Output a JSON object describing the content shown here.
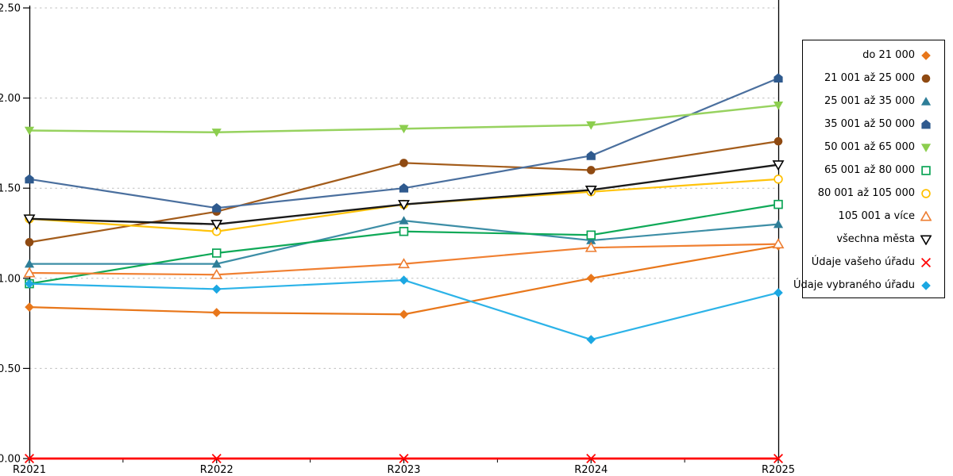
{
  "chart_data": {
    "type": "line",
    "title": "",
    "xlabel": "",
    "ylabel": "",
    "x_categories": [
      "R2021",
      "R2022",
      "R2023",
      "R2024",
      "R2025"
    ],
    "y_tick_labels": [
      "0.00",
      "0.50",
      "1.00",
      "1.50",
      "2.00",
      "2.50"
    ],
    "ylim": [
      0,
      2.5
    ],
    "grid": "horizontal-dashed",
    "gridline_color": "#BFBFBF",
    "axis_color": "#000000",
    "background_color": "#FFFFFF",
    "legend_position": "right",
    "highlighted_x": "R2025",
    "series": [
      {
        "name": "do 21 000",
        "marker": "diamond",
        "marker_style": "filled",
        "color": "#E8771B",
        "marker_color": "#E8771B",
        "line_width": 2.2,
        "values": [
          0.84,
          0.81,
          0.8,
          1.0,
          1.18
        ]
      },
      {
        "name": "21 001 až 25 000",
        "marker": "circle",
        "marker_style": "filled",
        "color": "#A35C1B",
        "marker_color": "#8F4A12",
        "line_width": 2.2,
        "values": [
          1.2,
          1.37,
          1.64,
          1.6,
          1.76
        ]
      },
      {
        "name": "25 001 až 35 000",
        "marker": "triangle-up",
        "marker_style": "filled",
        "color": "#3D8EA6",
        "marker_color": "#2E7E98",
        "line_width": 2.2,
        "values": [
          1.08,
          1.08,
          1.32,
          1.21,
          1.3
        ]
      },
      {
        "name": "35 001 až 50 000",
        "marker": "pentagon",
        "marker_style": "filled",
        "color": "#4A6F9E",
        "marker_color": "#2F5A8E",
        "line_width": 2.2,
        "values": [
          1.55,
          1.39,
          1.5,
          1.68,
          2.11
        ]
      },
      {
        "name": "50 001 až 65 000",
        "marker": "triangle-down",
        "marker_style": "filled",
        "color": "#97D25F",
        "marker_color": "#8CCE4E",
        "line_width": 2.5,
        "values": [
          1.82,
          1.81,
          1.83,
          1.85,
          1.96
        ]
      },
      {
        "name": "65 001 až 80 000",
        "marker": "square",
        "marker_style": "open",
        "color": "#0FA958",
        "marker_color": "#0AA455",
        "line_width": 2.2,
        "values": [
          0.97,
          1.14,
          1.26,
          1.24,
          1.41
        ]
      },
      {
        "name": "80 001 až 105 000",
        "marker": "circle",
        "marker_style": "open",
        "color": "#FFC30B",
        "marker_color": "#FFC000",
        "line_width": 2.2,
        "values": [
          1.33,
          1.26,
          1.41,
          1.48,
          1.55
        ]
      },
      {
        "name": "105 001 a více",
        "marker": "triangle-up",
        "marker_style": "open",
        "color": "#F08032",
        "marker_color": "#ED7D31",
        "line_width": 2.2,
        "values": [
          1.03,
          1.02,
          1.08,
          1.17,
          1.19
        ]
      },
      {
        "name": "všechna města",
        "marker": "triangle-down",
        "marker_style": "open",
        "color": "#1A1A1A",
        "marker_color": "#000000",
        "line_width": 2.4,
        "values": [
          1.33,
          1.3,
          1.41,
          1.49,
          1.63
        ]
      },
      {
        "name": "Údaje vašeho úřadu",
        "marker": "x",
        "marker_style": "open",
        "color": "#FF0000",
        "marker_color": "#FF0000",
        "line_width": 2.8,
        "values": [
          0.0,
          0.0,
          0.0,
          0.0,
          0.0
        ]
      },
      {
        "name": "Údaje vybraného úřadu",
        "marker": "diamond",
        "marker_style": "filled",
        "color": "#2CB3E8",
        "marker_color": "#1BA7E2",
        "line_width": 2.2,
        "values": [
          0.97,
          0.94,
          0.99,
          0.66,
          0.92
        ]
      }
    ]
  }
}
